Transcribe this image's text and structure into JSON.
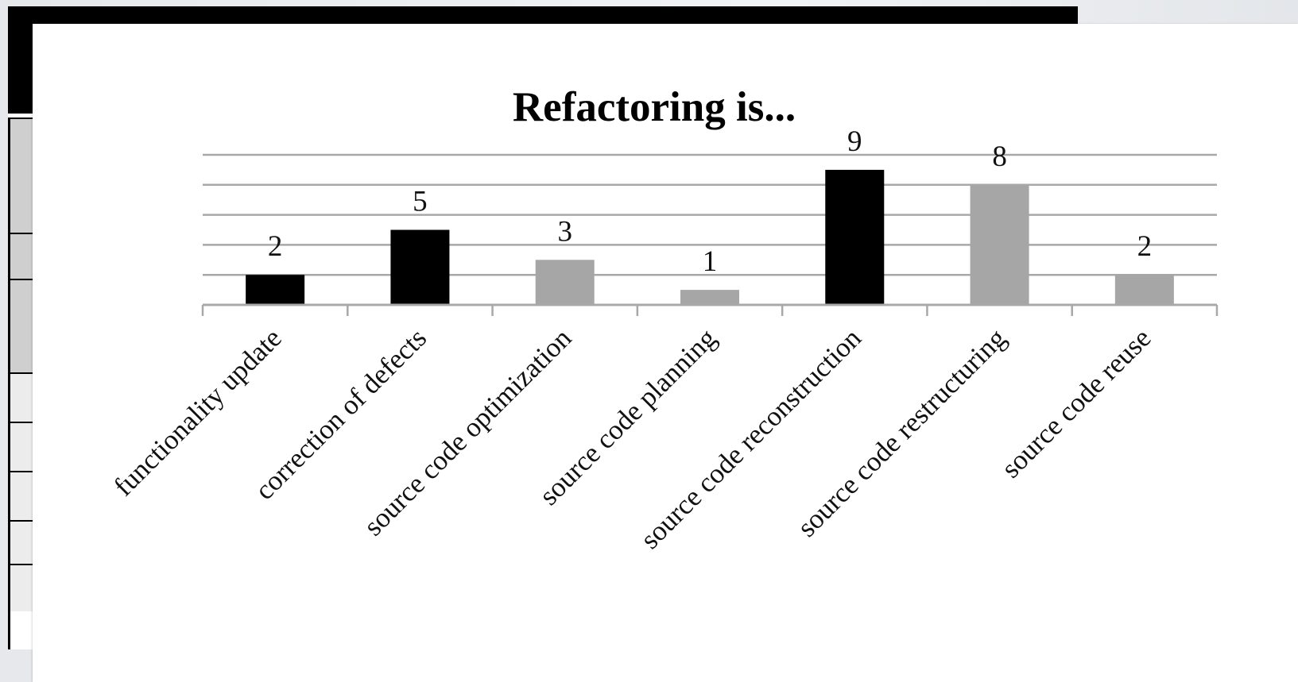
{
  "chart_data": {
    "type": "bar",
    "title": "Refactoring is...",
    "categories": [
      "functionality update",
      "correction of defects",
      "source code optimization",
      "source code planning",
      "source code reconstruction",
      "source code restructuring",
      "source code reuse"
    ],
    "values": [
      2,
      5,
      3,
      1,
      9,
      8,
      2
    ],
    "bar_colors": [
      "#000000",
      "#000000",
      "#a6a6a6",
      "#a6a6a6",
      "#000000",
      "#a6a6a6",
      "#a6a6a6"
    ],
    "ylim": [
      0,
      10
    ],
    "grid": true,
    "gridline_color": "#a8a8a8",
    "xlabel": "",
    "ylabel": ""
  }
}
